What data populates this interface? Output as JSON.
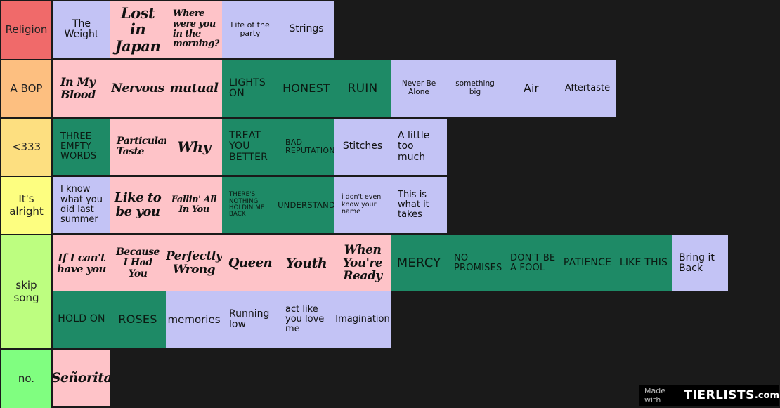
{
  "tiers": [
    {
      "label": "Religion",
      "color": "#f06a6a",
      "items": [
        {
          "text": "The Weight",
          "color": "lav"
        },
        {
          "text": "Lost in Japan",
          "color": "pink"
        },
        {
          "text": "Where were you in the morning?",
          "color": "pink"
        },
        {
          "text": "Life of the party",
          "color": "lav"
        },
        {
          "text": "Strings",
          "color": "lav"
        }
      ]
    },
    {
      "label": "A BOP",
      "color": "#fdbf80",
      "items": [
        {
          "text": "In My Blood",
          "color": "pink"
        },
        {
          "text": "Nervous",
          "color": "pink"
        },
        {
          "text": "mutual",
          "color": "pink"
        },
        {
          "text": "LIGHTS ON",
          "color": "green"
        },
        {
          "text": "HONEST",
          "color": "green"
        },
        {
          "text": "RUIN",
          "color": "green"
        },
        {
          "text": "Never Be Alone",
          "color": "lav"
        },
        {
          "text": "something big",
          "color": "lav"
        },
        {
          "text": "Air",
          "color": "lav"
        },
        {
          "text": "Aftertaste",
          "color": "lav"
        }
      ]
    },
    {
      "label": "<333",
      "color": "#fddf80",
      "items": [
        {
          "text": "THREE EMPTY WORDS",
          "color": "green"
        },
        {
          "text": "Particular Taste",
          "color": "pink"
        },
        {
          "text": "Why",
          "color": "pink"
        },
        {
          "text": "TREAT YOU BETTER",
          "color": "green"
        },
        {
          "text": "BAD REPUTATION",
          "color": "green"
        },
        {
          "text": "Stitches",
          "color": "lav"
        },
        {
          "text": "A little too much",
          "color": "lav"
        }
      ]
    },
    {
      "label": "It's alright",
      "color": "#fdfe80",
      "items": [
        {
          "text": "I know what you did last summer",
          "color": "lav"
        },
        {
          "text": "Like to be you",
          "color": "pink"
        },
        {
          "text": "Fallin' All In You",
          "color": "pink"
        },
        {
          "text": "THERE'S NOTHING HOLDIN ME BACK",
          "color": "green"
        },
        {
          "text": "UNDERSTAND",
          "color": "green"
        },
        {
          "text": "i don't even know your name",
          "color": "lav"
        },
        {
          "text": "This is what it takes",
          "color": "lav"
        }
      ]
    },
    {
      "label": "skip song",
      "color": "#bdfe80",
      "items": [
        {
          "text": "If I can't have you",
          "color": "pink"
        },
        {
          "text": "Because I Had You",
          "color": "pink"
        },
        {
          "text": "Perfectly Wrong",
          "color": "pink"
        },
        {
          "text": "Queen",
          "color": "pink"
        },
        {
          "text": "Youth",
          "color": "pink"
        },
        {
          "text": "When You're Ready",
          "color": "pink"
        },
        {
          "text": "MERCY",
          "color": "green"
        },
        {
          "text": "NO PROMISES",
          "color": "green"
        },
        {
          "text": "DON'T BE A FOOL",
          "color": "green"
        },
        {
          "text": "PATIENCE",
          "color": "green"
        },
        {
          "text": "LIKE THIS",
          "color": "green"
        },
        {
          "text": "Bring it Back",
          "color": "lav"
        },
        {
          "text": "HOLD ON",
          "color": "green"
        },
        {
          "text": "ROSES",
          "color": "green"
        },
        {
          "text": "memories",
          "color": "lav"
        },
        {
          "text": "Running low",
          "color": "lav"
        },
        {
          "text": "act like you love me",
          "color": "lav"
        },
        {
          "text": "Imagination",
          "color": "lav"
        }
      ]
    },
    {
      "label": "no.",
      "color": "#80fe80",
      "items": [
        {
          "text": "Señorita",
          "color": "pink"
        }
      ]
    }
  ],
  "watermark": {
    "made_with": "Made with",
    "brand": "TIERLISTS",
    "suffix": ".com"
  }
}
